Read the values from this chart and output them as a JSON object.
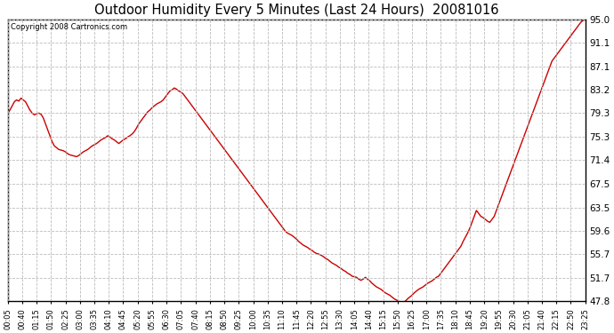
{
  "title": "Outdoor Humidity Every 5 Minutes (Last 24 Hours)  20081016",
  "copyright": "Copyright 2008 Cartronics.com",
  "line_color": "#cc0000",
  "bg_color": "#ffffff",
  "plot_bg_color": "#ffffff",
  "grid_color": "#bbbbbb",
  "yticks": [
    47.8,
    51.7,
    55.7,
    59.6,
    63.5,
    67.5,
    71.4,
    75.3,
    79.3,
    83.2,
    87.1,
    91.1,
    95.0
  ],
  "ylim": [
    47.8,
    95.0
  ],
  "xtick_labels": [
    "00:05",
    "00:40",
    "01:15",
    "01:50",
    "02:25",
    "03:00",
    "03:35",
    "04:10",
    "04:45",
    "05:20",
    "05:55",
    "06:30",
    "07:05",
    "07:40",
    "08:15",
    "08:50",
    "09:25",
    "10:00",
    "10:35",
    "11:10",
    "11:45",
    "12:20",
    "12:55",
    "13:30",
    "14:05",
    "14:40",
    "15:15",
    "15:50",
    "16:25",
    "17:00",
    "17:35",
    "18:10",
    "18:45",
    "19:20",
    "19:55",
    "20:30",
    "21:05",
    "21:40",
    "22:15",
    "22:50",
    "23:25"
  ],
  "humidity_data": [
    79.3,
    79.8,
    80.5,
    81.2,
    81.5,
    81.3,
    81.8,
    81.5,
    81.2,
    80.5,
    79.8,
    79.3,
    79.0,
    79.2,
    79.3,
    79.1,
    78.5,
    77.5,
    76.5,
    75.5,
    74.5,
    73.8,
    73.5,
    73.2,
    73.1,
    73.0,
    72.8,
    72.5,
    72.3,
    72.2,
    72.1,
    72.0,
    72.2,
    72.5,
    72.8,
    73.0,
    73.2,
    73.5,
    73.8,
    74.0,
    74.2,
    74.5,
    74.8,
    75.0,
    75.2,
    75.5,
    75.3,
    75.0,
    74.8,
    74.5,
    74.2,
    74.5,
    74.8,
    75.0,
    75.3,
    75.5,
    75.8,
    76.2,
    76.8,
    77.5,
    78.0,
    78.5,
    79.0,
    79.5,
    79.8,
    80.2,
    80.5,
    80.8,
    81.0,
    81.2,
    81.5,
    82.0,
    82.5,
    83.0,
    83.2,
    83.5,
    83.3,
    83.0,
    82.8,
    82.5,
    82.0,
    81.5,
    81.0,
    80.5,
    80.0,
    79.5,
    79.0,
    78.5,
    78.0,
    77.5,
    77.0,
    76.5,
    76.0,
    75.5,
    75.0,
    74.5,
    74.0,
    73.5,
    73.0,
    72.5,
    72.0,
    71.5,
    71.0,
    70.5,
    70.0,
    69.5,
    69.0,
    68.5,
    68.0,
    67.5,
    67.0,
    66.5,
    66.0,
    65.5,
    65.0,
    64.5,
    64.0,
    63.5,
    63.0,
    62.5,
    62.0,
    61.5,
    61.0,
    60.5,
    60.0,
    59.5,
    59.2,
    59.0,
    58.8,
    58.5,
    58.2,
    57.8,
    57.5,
    57.2,
    57.0,
    56.8,
    56.5,
    56.3,
    56.0,
    55.8,
    55.7,
    55.5,
    55.3,
    55.0,
    54.8,
    54.5,
    54.2,
    54.0,
    53.8,
    53.5,
    53.3,
    53.0,
    52.8,
    52.5,
    52.3,
    52.0,
    51.9,
    51.8,
    51.5,
    51.3,
    51.5,
    51.8,
    51.5,
    51.2,
    50.8,
    50.5,
    50.2,
    50.0,
    49.8,
    49.5,
    49.2,
    49.0,
    48.8,
    48.5,
    48.2,
    48.0,
    47.8,
    47.5,
    47.6,
    47.8,
    48.2,
    48.5,
    48.8,
    49.2,
    49.5,
    49.8,
    50.0,
    50.2,
    50.5,
    50.8,
    51.0,
    51.2,
    51.5,
    51.8,
    52.0,
    52.5,
    53.0,
    53.5,
    54.0,
    54.5,
    55.0,
    55.5,
    56.0,
    56.5,
    57.0,
    57.8,
    58.5,
    59.2,
    60.0,
    61.0,
    62.0,
    63.0,
    62.5,
    62.0,
    61.8,
    61.5,
    61.2,
    61.0,
    61.5,
    62.0,
    63.0,
    64.0,
    65.0,
    66.0,
    67.0,
    68.0,
    69.0,
    70.0,
    71.0,
    72.0,
    73.0,
    74.0,
    75.0,
    76.0,
    77.0,
    78.0,
    79.0,
    80.0,
    81.0,
    82.0,
    83.0,
    84.0,
    85.0,
    86.0,
    87.0,
    88.0,
    88.5,
    89.0,
    89.5,
    90.0,
    90.5,
    91.0,
    91.5,
    92.0,
    92.5,
    93.0,
    93.5,
    94.0,
    94.5,
    94.8,
    95.0
  ]
}
